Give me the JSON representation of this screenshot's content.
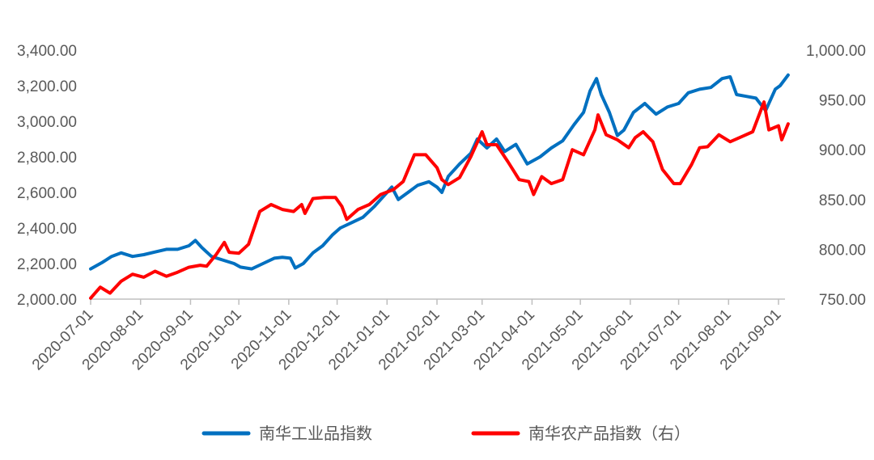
{
  "chart_data": {
    "type": "line",
    "title": "",
    "x_ticks": [
      "2020-07-01",
      "2020-08-01",
      "2020-09-01",
      "2020-10-01",
      "2020-11-01",
      "2020-12-01",
      "2021-01-01",
      "2021-02-01",
      "2021-03-01",
      "2021-04-01",
      "2021-05-01",
      "2021-06-01",
      "2021-07-01",
      "2021-08-01",
      "2021-09-01"
    ],
    "y_left": {
      "min": 2000,
      "max": 3400,
      "step": 200,
      "tick_labels": [
        "2,000.00",
        "2,200.00",
        "2,400.00",
        "2,600.00",
        "2,800.00",
        "3,000.00",
        "3,200.00",
        "3,400.00"
      ]
    },
    "y_right": {
      "min": 750,
      "max": 1000,
      "step": 50,
      "tick_labels": [
        "750.00",
        "800.00",
        "850.00",
        "900.00",
        "950.00",
        "1,000.00"
      ]
    },
    "grid": false,
    "legend_position": "bottom",
    "series": [
      {
        "name": "南华工业品指数",
        "axis": "left",
        "color": "#0070C0",
        "points": [
          [
            "2020-07-01",
            2170
          ],
          [
            "2020-07-08",
            2205
          ],
          [
            "2020-07-14",
            2240
          ],
          [
            "2020-07-20",
            2260
          ],
          [
            "2020-07-27",
            2240
          ],
          [
            "2020-08-03",
            2250
          ],
          [
            "2020-08-10",
            2265
          ],
          [
            "2020-08-17",
            2280
          ],
          [
            "2020-08-24",
            2280
          ],
          [
            "2020-08-31",
            2300
          ],
          [
            "2020-09-04",
            2330
          ],
          [
            "2020-09-08",
            2290
          ],
          [
            "2020-09-14",
            2240
          ],
          [
            "2020-09-21",
            2220
          ],
          [
            "2020-09-28",
            2200
          ],
          [
            "2020-10-02",
            2180
          ],
          [
            "2020-10-09",
            2170
          ],
          [
            "2020-10-16",
            2200
          ],
          [
            "2020-10-23",
            2230
          ],
          [
            "2020-10-28",
            2235
          ],
          [
            "2020-11-02",
            2230
          ],
          [
            "2020-11-05",
            2175
          ],
          [
            "2020-11-10",
            2200
          ],
          [
            "2020-11-16",
            2260
          ],
          [
            "2020-11-22",
            2300
          ],
          [
            "2020-11-28",
            2360
          ],
          [
            "2020-12-03",
            2400
          ],
          [
            "2020-12-10",
            2430
          ],
          [
            "2020-12-17",
            2460
          ],
          [
            "2020-12-24",
            2520
          ],
          [
            "2020-12-30",
            2580
          ],
          [
            "2021-01-04",
            2630
          ],
          [
            "2021-01-08",
            2560
          ],
          [
            "2021-01-14",
            2600
          ],
          [
            "2021-01-20",
            2640
          ],
          [
            "2021-01-27",
            2660
          ],
          [
            "2021-02-01",
            2630
          ],
          [
            "2021-02-04",
            2600
          ],
          [
            "2021-02-08",
            2690
          ],
          [
            "2021-02-15",
            2760
          ],
          [
            "2021-02-22",
            2820
          ],
          [
            "2021-02-26",
            2900
          ],
          [
            "2021-03-04",
            2850
          ],
          [
            "2021-03-10",
            2900
          ],
          [
            "2021-03-15",
            2830
          ],
          [
            "2021-03-22",
            2870
          ],
          [
            "2021-03-29",
            2760
          ],
          [
            "2021-04-06",
            2800
          ],
          [
            "2021-04-13",
            2850
          ],
          [
            "2021-04-20",
            2890
          ],
          [
            "2021-04-27",
            2980
          ],
          [
            "2021-05-03",
            3050
          ],
          [
            "2021-05-07",
            3170
          ],
          [
            "2021-05-11",
            3240
          ],
          [
            "2021-05-14",
            3150
          ],
          [
            "2021-05-19",
            3050
          ],
          [
            "2021-05-24",
            2920
          ],
          [
            "2021-05-28",
            2950
          ],
          [
            "2021-06-03",
            3050
          ],
          [
            "2021-06-10",
            3100
          ],
          [
            "2021-06-17",
            3040
          ],
          [
            "2021-06-24",
            3080
          ],
          [
            "2021-07-01",
            3100
          ],
          [
            "2021-07-07",
            3160
          ],
          [
            "2021-07-14",
            3180
          ],
          [
            "2021-07-21",
            3190
          ],
          [
            "2021-07-28",
            3240
          ],
          [
            "2021-08-02",
            3250
          ],
          [
            "2021-08-06",
            3150
          ],
          [
            "2021-08-12",
            3140
          ],
          [
            "2021-08-18",
            3130
          ],
          [
            "2021-08-24",
            3060
          ],
          [
            "2021-08-30",
            3180
          ],
          [
            "2021-09-02",
            3200
          ],
          [
            "2021-09-07",
            3260
          ]
        ]
      },
      {
        "name": "南华农产品指数（右）",
        "axis": "right",
        "color": "#FF0000",
        "points": [
          [
            "2020-07-01",
            751
          ],
          [
            "2020-07-07",
            762
          ],
          [
            "2020-07-13",
            756
          ],
          [
            "2020-07-20",
            768
          ],
          [
            "2020-07-27",
            775
          ],
          [
            "2020-08-03",
            772
          ],
          [
            "2020-08-10",
            778
          ],
          [
            "2020-08-17",
            773
          ],
          [
            "2020-08-24",
            777
          ],
          [
            "2020-08-31",
            782
          ],
          [
            "2020-09-07",
            784
          ],
          [
            "2020-09-11",
            783
          ],
          [
            "2020-09-17",
            795
          ],
          [
            "2020-09-22",
            807
          ],
          [
            "2020-09-25",
            797
          ],
          [
            "2020-10-01",
            796
          ],
          [
            "2020-10-07",
            805
          ],
          [
            "2020-10-14",
            838
          ],
          [
            "2020-10-21",
            845
          ],
          [
            "2020-10-28",
            840
          ],
          [
            "2020-11-04",
            838
          ],
          [
            "2020-11-09",
            845
          ],
          [
            "2020-11-11",
            836
          ],
          [
            "2020-11-16",
            851
          ],
          [
            "2020-11-23",
            852
          ],
          [
            "2020-11-30",
            852
          ],
          [
            "2020-12-04",
            843
          ],
          [
            "2020-12-07",
            830
          ],
          [
            "2020-12-14",
            840
          ],
          [
            "2020-12-21",
            845
          ],
          [
            "2020-12-28",
            855
          ],
          [
            "2021-01-05",
            860
          ],
          [
            "2021-01-11",
            868
          ],
          [
            "2021-01-18",
            895
          ],
          [
            "2021-01-25",
            895
          ],
          [
            "2021-02-01",
            882
          ],
          [
            "2021-02-04",
            870
          ],
          [
            "2021-02-08",
            865
          ],
          [
            "2021-02-15",
            872
          ],
          [
            "2021-02-22",
            893
          ],
          [
            "2021-03-01",
            918
          ],
          [
            "2021-03-04",
            905
          ],
          [
            "2021-03-10",
            905
          ],
          [
            "2021-03-17",
            888
          ],
          [
            "2021-03-24",
            870
          ],
          [
            "2021-03-30",
            868
          ],
          [
            "2021-04-02",
            855
          ],
          [
            "2021-04-07",
            873
          ],
          [
            "2021-04-13",
            866
          ],
          [
            "2021-04-20",
            870
          ],
          [
            "2021-04-26",
            900
          ],
          [
            "2021-05-03",
            895
          ],
          [
            "2021-05-10",
            920
          ],
          [
            "2021-05-12",
            935
          ],
          [
            "2021-05-17",
            915
          ],
          [
            "2021-05-24",
            910
          ],
          [
            "2021-05-31",
            902
          ],
          [
            "2021-06-04",
            912
          ],
          [
            "2021-06-09",
            918
          ],
          [
            "2021-06-15",
            908
          ],
          [
            "2021-06-21",
            880
          ],
          [
            "2021-06-28",
            866
          ],
          [
            "2021-07-02",
            866
          ],
          [
            "2021-07-09",
            885
          ],
          [
            "2021-07-14",
            902
          ],
          [
            "2021-07-19",
            903
          ],
          [
            "2021-07-26",
            915
          ],
          [
            "2021-08-02",
            908
          ],
          [
            "2021-08-09",
            913
          ],
          [
            "2021-08-16",
            918
          ],
          [
            "2021-08-23",
            948
          ],
          [
            "2021-08-26",
            920
          ],
          [
            "2021-09-01",
            924
          ],
          [
            "2021-09-03",
            910
          ],
          [
            "2021-09-07",
            926
          ]
        ]
      }
    ]
  }
}
